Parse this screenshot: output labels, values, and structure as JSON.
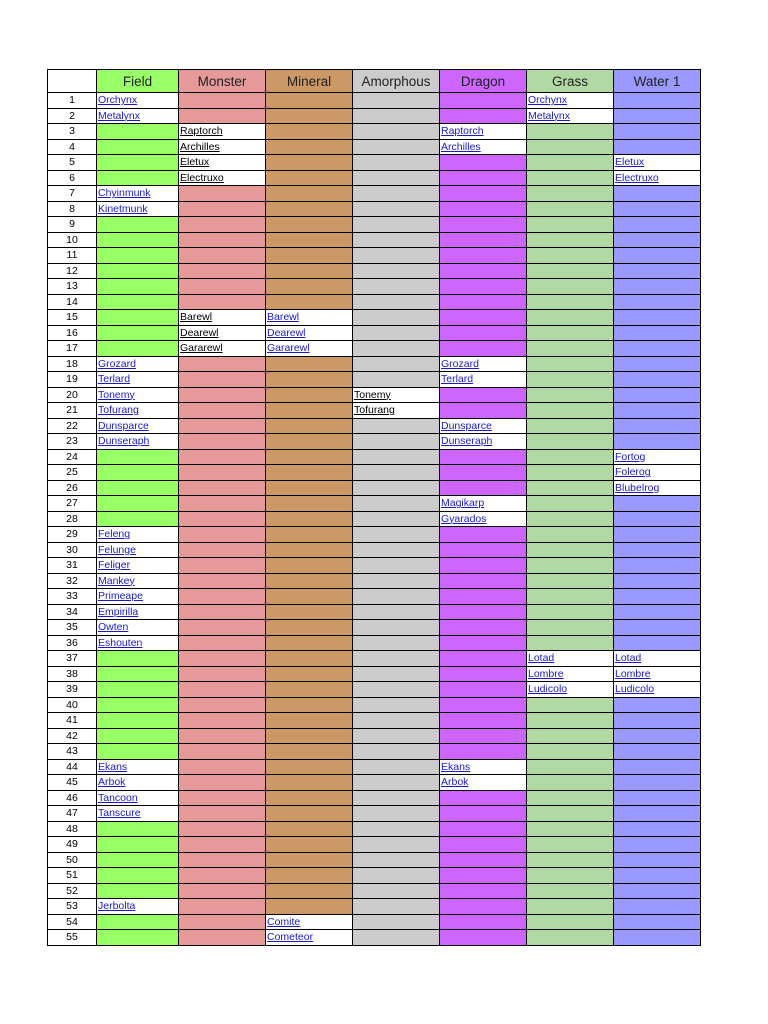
{
  "columns": [
    {
      "key": "field",
      "label": "Field",
      "color": "#99ff66"
    },
    {
      "key": "monster",
      "label": "Monster",
      "color": "#e59999"
    },
    {
      "key": "mineral",
      "label": "Mineral",
      "color": "#cc9966"
    },
    {
      "key": "amorphous",
      "label": "Amorphous",
      "color": "#cccccc"
    },
    {
      "key": "dragon",
      "label": "Dragon",
      "color": "#cc66ff"
    },
    {
      "key": "grass",
      "label": "Grass",
      "color": "#b2d9a3"
    },
    {
      "key": "water1",
      "label": "Water 1",
      "color": "#9999ff"
    }
  ],
  "rows": [
    {
      "n": "1",
      "cells": {
        "field": {
          "t": "Orchynx",
          "l": true
        },
        "grass": {
          "t": "Orchynx",
          "l": true
        }
      }
    },
    {
      "n": "2",
      "cells": {
        "field": {
          "t": "Metalynx",
          "l": true
        },
        "grass": {
          "t": "Metalynx",
          "l": true
        }
      }
    },
    {
      "n": "3",
      "cells": {
        "monster": {
          "t": "Raptorch",
          "l": false
        },
        "dragon": {
          "t": "Raptorch",
          "l": true
        }
      }
    },
    {
      "n": "4",
      "cells": {
        "monster": {
          "t": "Archilles",
          "l": false
        },
        "dragon": {
          "t": "Archilles",
          "l": true
        }
      }
    },
    {
      "n": "5",
      "cells": {
        "monster": {
          "t": "Eletux",
          "l": false
        },
        "water1": {
          "t": "Eletux",
          "l": true
        }
      }
    },
    {
      "n": "6",
      "cells": {
        "monster": {
          "t": "Electruxo",
          "l": false
        },
        "water1": {
          "t": "Electruxo",
          "l": true
        }
      }
    },
    {
      "n": "7",
      "cells": {
        "field": {
          "t": "Chyinmunk",
          "l": true
        }
      }
    },
    {
      "n": "8",
      "cells": {
        "field": {
          "t": "Kinetmunk",
          "l": true
        }
      }
    },
    {
      "n": "9",
      "cells": {}
    },
    {
      "n": "10",
      "cells": {}
    },
    {
      "n": "11",
      "cells": {}
    },
    {
      "n": "12",
      "cells": {}
    },
    {
      "n": "13",
      "cells": {}
    },
    {
      "n": "14",
      "cells": {}
    },
    {
      "n": "15",
      "cells": {
        "monster": {
          "t": "Barewl",
          "l": false
        },
        "mineral": {
          "t": "Barewl",
          "l": true
        }
      }
    },
    {
      "n": "16",
      "cells": {
        "monster": {
          "t": "Dearewl",
          "l": false
        },
        "mineral": {
          "t": "Dearewl",
          "l": true
        }
      }
    },
    {
      "n": "17",
      "cells": {
        "monster": {
          "t": "Gararewl",
          "l": false
        },
        "mineral": {
          "t": "Gararewl",
          "l": true
        }
      }
    },
    {
      "n": "18",
      "cells": {
        "field": {
          "t": "Grozard",
          "l": true
        },
        "dragon": {
          "t": "Grozard",
          "l": true
        }
      }
    },
    {
      "n": "19",
      "cells": {
        "field": {
          "t": "Terlard",
          "l": true
        },
        "dragon": {
          "t": "Terlard",
          "l": true
        }
      }
    },
    {
      "n": "20",
      "cells": {
        "field": {
          "t": "Tonemy",
          "l": true
        },
        "amorphous": {
          "t": "Tonemy",
          "l": false
        }
      }
    },
    {
      "n": "21",
      "cells": {
        "field": {
          "t": "Tofurang",
          "l": true
        },
        "amorphous": {
          "t": "Tofurang",
          "l": false
        }
      }
    },
    {
      "n": "22",
      "cells": {
        "field": {
          "t": "Dunsparce",
          "l": true
        },
        "dragon": {
          "t": "Dunsparce",
          "l": true
        }
      }
    },
    {
      "n": "23",
      "cells": {
        "field": {
          "t": "Dunseraph",
          "l": true
        },
        "dragon": {
          "t": "Dunseraph",
          "l": true
        }
      }
    },
    {
      "n": "24",
      "cells": {
        "water1": {
          "t": "Fortog",
          "l": true
        }
      }
    },
    {
      "n": "25",
      "cells": {
        "water1": {
          "t": "Folerog",
          "l": true
        }
      }
    },
    {
      "n": "26",
      "cells": {
        "water1": {
          "t": "Blubelrog",
          "l": true
        }
      }
    },
    {
      "n": "27",
      "cells": {
        "dragon": {
          "t": "Magikarp",
          "l": true
        }
      }
    },
    {
      "n": "28",
      "cells": {
        "dragon": {
          "t": "Gyarados",
          "l": true
        }
      }
    },
    {
      "n": "29",
      "cells": {
        "field": {
          "t": "Feleng",
          "l": true
        }
      }
    },
    {
      "n": "30",
      "cells": {
        "field": {
          "t": "Felunge",
          "l": true
        }
      }
    },
    {
      "n": "31",
      "cells": {
        "field": {
          "t": "Feliger",
          "l": true
        }
      }
    },
    {
      "n": "32",
      "cells": {
        "field": {
          "t": "Mankey",
          "l": true
        }
      }
    },
    {
      "n": "33",
      "cells": {
        "field": {
          "t": "Primeape",
          "l": true
        }
      }
    },
    {
      "n": "34",
      "cells": {
        "field": {
          "t": "Empirilla",
          "l": true
        }
      }
    },
    {
      "n": "35",
      "cells": {
        "field": {
          "t": "Owten",
          "l": true
        }
      }
    },
    {
      "n": "36",
      "cells": {
        "field": {
          "t": "Eshouten",
          "l": true
        }
      }
    },
    {
      "n": "37",
      "cells": {
        "grass": {
          "t": "Lotad",
          "l": true
        },
        "water1": {
          "t": "Lotad",
          "l": true
        }
      }
    },
    {
      "n": "38",
      "cells": {
        "grass": {
          "t": "Lombre",
          "l": true
        },
        "water1": {
          "t": "Lombre",
          "l": true
        }
      }
    },
    {
      "n": "39",
      "cells": {
        "grass": {
          "t": "Ludicolo",
          "l": true
        },
        "water1": {
          "t": "Ludicolo",
          "l": true
        }
      }
    },
    {
      "n": "40",
      "cells": {}
    },
    {
      "n": "41",
      "cells": {}
    },
    {
      "n": "42",
      "cells": {}
    },
    {
      "n": "43",
      "cells": {}
    },
    {
      "n": "44",
      "cells": {
        "field": {
          "t": "Ekans",
          "l": true
        },
        "dragon": {
          "t": "Ekans",
          "l": true
        }
      }
    },
    {
      "n": "45",
      "cells": {
        "field": {
          "t": "Arbok",
          "l": true
        },
        "dragon": {
          "t": "Arbok",
          "l": true
        }
      }
    },
    {
      "n": "46",
      "cells": {
        "field": {
          "t": "Tancoon",
          "l": true
        }
      }
    },
    {
      "n": "47",
      "cells": {
        "field": {
          "t": "Tanscure",
          "l": true
        }
      }
    },
    {
      "n": "48",
      "cells": {}
    },
    {
      "n": "49",
      "cells": {}
    },
    {
      "n": "50",
      "cells": {}
    },
    {
      "n": "51",
      "cells": {}
    },
    {
      "n": "52",
      "cells": {}
    },
    {
      "n": "53",
      "cells": {
        "field": {
          "t": "Jerbolta",
          "l": true
        }
      }
    },
    {
      "n": "54",
      "cells": {
        "mineral": {
          "t": "Comite",
          "l": true
        }
      }
    },
    {
      "n": "55",
      "cells": {
        "mineral": {
          "t": "Cometeor",
          "l": true
        }
      }
    }
  ]
}
